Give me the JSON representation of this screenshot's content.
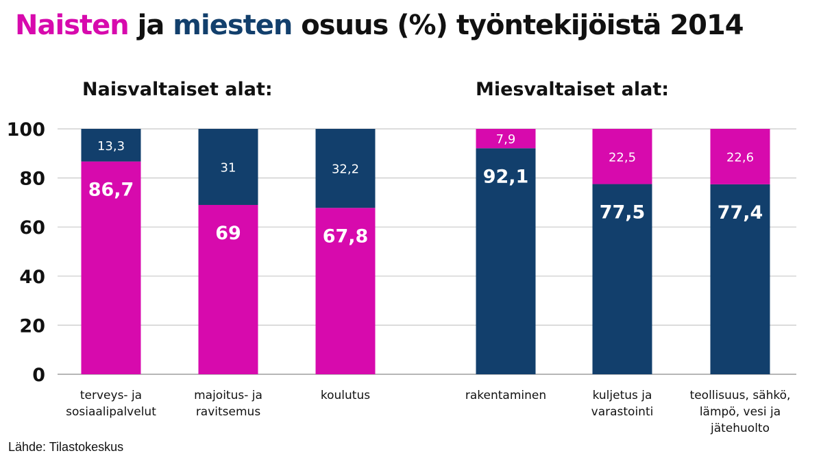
{
  "title": {
    "word_women": "Naisten",
    "word_and": "ja",
    "word_men": "miesten",
    "rest": "osuus (%) työntekijöistä 2014"
  },
  "source": "Lähde: Tilastokeskus",
  "colors": {
    "women": "#d70aad",
    "men": "#123f6c",
    "grid": "#c8c8c8",
    "text": "#111111"
  },
  "chart_data": {
    "type": "bar",
    "stacked": true,
    "ylim": [
      0,
      100
    ],
    "yticks": [
      0,
      20,
      40,
      60,
      80,
      100
    ],
    "grid": true,
    "groups": [
      {
        "title": "Naisvaltaiset alat:",
        "bars": [
          0,
          1,
          2
        ]
      },
      {
        "title": "Miesvaltaiset alat:",
        "bars": [
          3,
          4,
          5
        ]
      }
    ],
    "categories": [
      [
        "terveys- ja",
        "sosiaalipalvelut"
      ],
      [
        "majoitus- ja",
        "ravitsemus"
      ],
      [
        "koulutus"
      ],
      [
        "rakentaminen"
      ],
      [
        "kuljetus ja",
        "varastointi"
      ],
      [
        "teollisuus, sähkö,",
        "lämpö, vesi ja",
        "jätehuolto"
      ]
    ],
    "series": [
      {
        "key": "women",
        "values": [
          86.7,
          69,
          67.8,
          7.9,
          22.5,
          22.6
        ],
        "labels": [
          "86,7",
          "69",
          "67,8",
          "7,9",
          "22,5",
          "22,6"
        ]
      },
      {
        "key": "men",
        "values": [
          13.3,
          31,
          32.2,
          92.1,
          77.5,
          77.4
        ],
        "labels": [
          "13,3",
          "31",
          "32,2",
          "92,1",
          "77,5",
          "77,4"
        ]
      }
    ],
    "bottom_series": [
      "women",
      "women",
      "women",
      "men",
      "men",
      "men"
    ]
  }
}
